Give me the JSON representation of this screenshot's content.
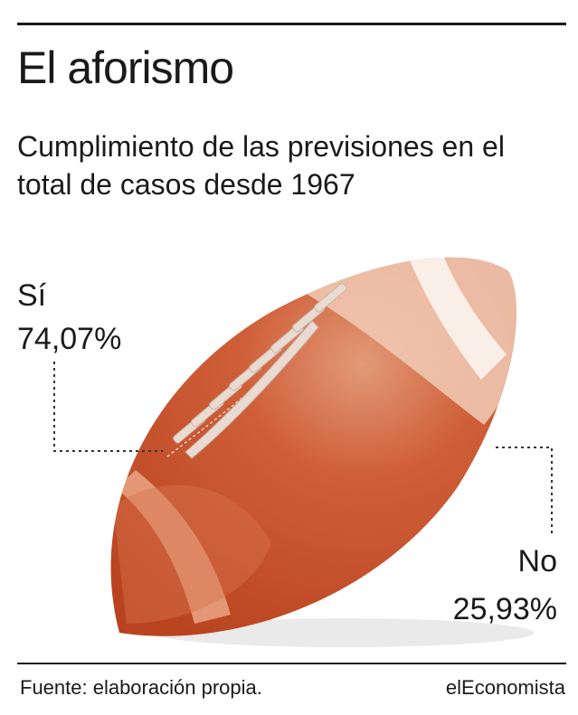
{
  "title": "El aforismo",
  "subtitle": "Cumplimiento de las previsiones en el total de casos desde 1967",
  "chart_data": {
    "type": "pie",
    "categories": [
      "Sí",
      "No"
    ],
    "values": [
      74.07,
      25.93
    ],
    "labels": [
      "74,07%",
      "25,93%"
    ],
    "unit": "%",
    "colors": {
      "ball": "#c9532e",
      "ball_light": "#e8a688",
      "stripe": "#f5e1d6",
      "lace": "#ecd7cc"
    }
  },
  "footer": {
    "source": "Fuente: elaboración propia.",
    "brand": "elEconomista"
  }
}
